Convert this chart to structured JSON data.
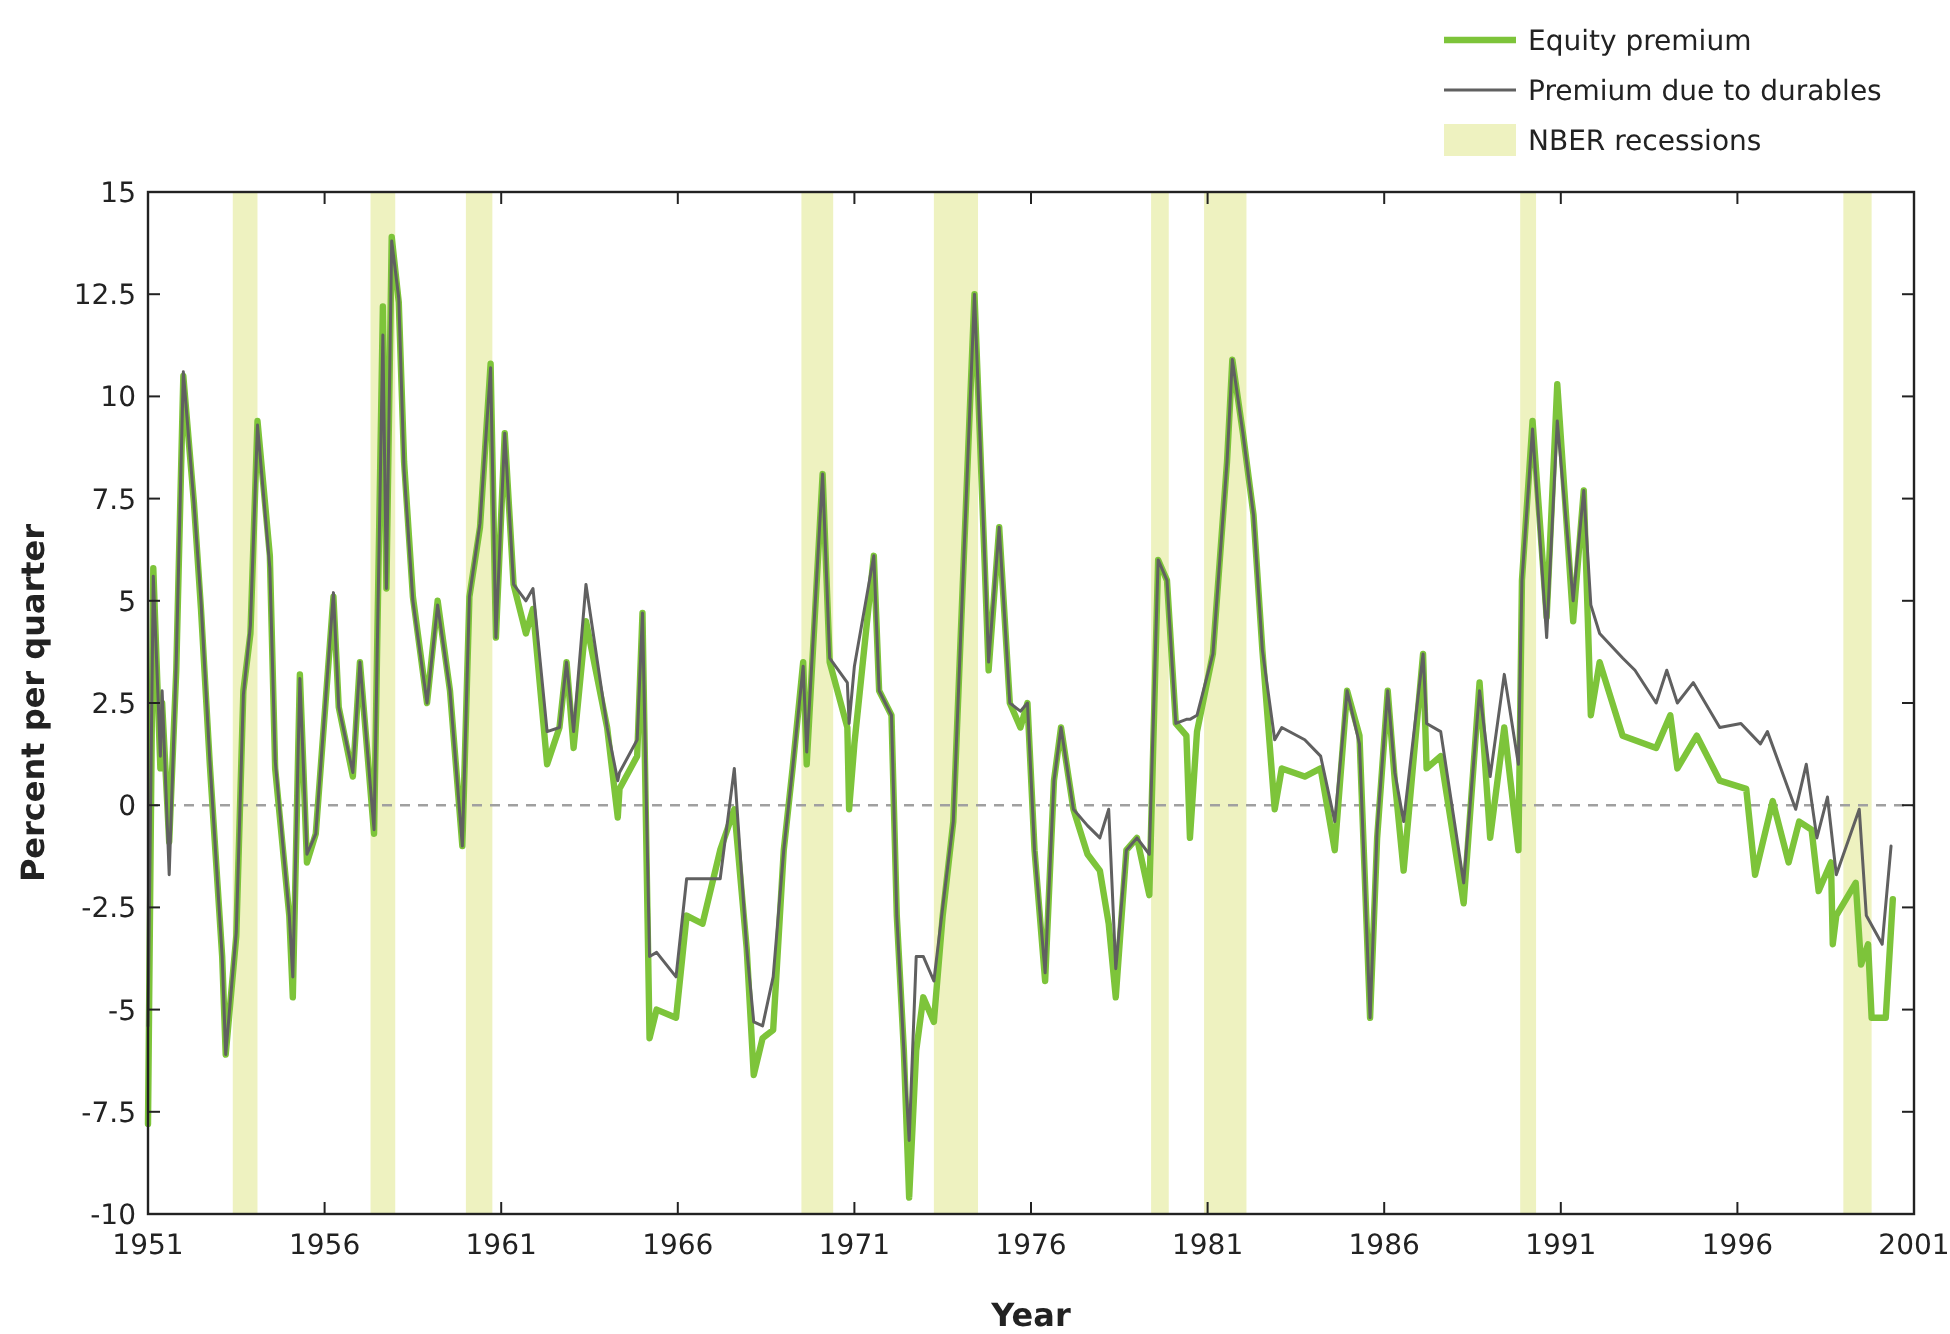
{
  "chart_data": {
    "type": "line",
    "xlabel": "Year",
    "ylabel": "Percent per quarter",
    "xlim": [
      1951,
      2001
    ],
    "xticks": [
      1951,
      1956,
      1961,
      1966,
      1971,
      1976,
      1981,
      1986,
      1991,
      1996,
      2001
    ],
    "ylim": [
      -10,
      15
    ],
    "yticks": [
      -10,
      -7.5,
      -5,
      -2.5,
      0,
      2.5,
      5,
      7.5,
      10,
      12.5,
      15
    ],
    "grid": false,
    "legend": "top right",
    "marker": "none",
    "line_style": "solid",
    "series": [
      {
        "name": "Equity premium",
        "color": "#7dc43a",
        "x": [
          1951.0,
          1951.15,
          1951.35,
          1951.4,
          1951.6,
          1951.8,
          1952.0,
          1952.3,
          1952.5,
          1952.75,
          1953.1,
          1953.2,
          1953.5,
          1953.7,
          1953.9,
          1954.1,
          1954.45,
          1954.6,
          1955.0,
          1955.1,
          1955.3,
          1955.5,
          1955.75,
          1956.25,
          1956.4,
          1956.8,
          1957.0,
          1957.4,
          1957.65,
          1957.75,
          1957.9,
          1958.1,
          1958.25,
          1958.5,
          1958.9,
          1959.2,
          1959.55,
          1959.9,
          1960.1,
          1960.4,
          1960.7,
          1960.85,
          1961.1,
          1961.35,
          1961.7,
          1961.9,
          1962.3,
          1962.65,
          1962.85,
          1963.05,
          1963.4,
          1964.0,
          1964.3,
          1964.35,
          1964.85,
          1965.0,
          1965.2,
          1965.4,
          1965.95,
          1966.25,
          1966.7,
          1967.2,
          1967.6,
          1967.95,
          1968.15,
          1968.4,
          1968.7,
          1969.0,
          1969.25,
          1969.55,
          1969.65,
          1970.1,
          1970.3,
          1970.8,
          1970.85,
          1971.0,
          1971.55,
          1971.7,
          1972.05,
          1972.2,
          1972.4,
          1972.55,
          1972.75,
          1972.95,
          1973.25,
          1973.5,
          1973.8,
          1974.1,
          1974.4,
          1974.65,
          1974.8,
          1975.1,
          1975.4,
          1975.7,
          1975.9,
          1976.1,
          1976.4,
          1976.65,
          1976.85,
          1977.2,
          1977.6,
          1977.95,
          1978.2,
          1978.4,
          1978.7,
          1979.0,
          1979.35,
          1979.6,
          1979.85,
          1980.1,
          1980.4,
          1980.5,
          1980.7,
          1981.15,
          1981.55,
          1981.7,
          1982.0,
          1982.3,
          1982.55,
          1982.9,
          1983.1,
          1983.75,
          1984.2,
          1984.6,
          1984.95,
          1985.3,
          1985.6,
          1985.8,
          1986.1,
          1986.3,
          1986.55,
          1987.1,
          1987.2,
          1987.6,
          1988.25,
          1988.7,
          1989.0,
          1989.4,
          1989.8,
          1989.9,
          1990.2,
          1990.6,
          1990.9,
          1991.35,
          1991.65,
          1991.85,
          1992.1,
          1992.75,
          1993.7,
          1994.1,
          1994.3,
          1994.85,
          1995.5,
          1996.25,
          1996.5,
          1997.0,
          1997.45,
          1997.75,
          1998.1,
          1998.3,
          1998.65,
          1998.7,
          1998.8,
          1999.35,
          1999.5,
          1999.7,
          1999.8,
          2000.2,
          2000.4
        ],
        "values": [
          -7.8,
          5.8,
          0.9,
          2.5,
          -0.9,
          3.3,
          10.5,
          7.4,
          4.8,
          1.0,
          -3.7,
          -6.1,
          -3.2,
          2.8,
          4.2,
          9.4,
          6.1,
          0.9,
          -2.7,
          -4.7,
          3.2,
          -1.4,
          -0.7,
          5.1,
          2.4,
          0.7,
          3.5,
          -0.7,
          12.2,
          5.3,
          13.9,
          12.3,
          8.4,
          5.1,
          2.5,
          5.0,
          2.8,
          -1.0,
          5.1,
          6.8,
          10.8,
          4.1,
          9.1,
          5.4,
          4.2,
          4.8,
          1.0,
          1.9,
          3.5,
          1.4,
          4.5,
          1.9,
          -0.3,
          0.4,
          1.2,
          4.7,
          -5.7,
          -5.0,
          -5.2,
          -2.7,
          -2.9,
          -1.1,
          -0.1,
          -3.5,
          -6.6,
          -5.7,
          -5.5,
          -1.1,
          0.9,
          3.5,
          1.0,
          8.1,
          3.5,
          1.9,
          -0.1,
          1.5,
          6.1,
          2.8,
          2.2,
          -2.7,
          -6.0,
          -9.6,
          -6.0,
          -4.7,
          -5.3,
          -2.7,
          -0.4,
          6.1,
          12.5,
          6.8,
          3.3,
          6.8,
          2.5,
          1.9,
          2.5,
          -1.1,
          -4.3,
          0.6,
          1.9,
          -0.1,
          -1.2,
          -1.6,
          -2.9,
          -4.7,
          -1.1,
          -0.8,
          -2.2,
          6.0,
          5.5,
          2.0,
          1.7,
          -0.8,
          1.8,
          3.7,
          8.4,
          10.9,
          9.1,
          7.1,
          3.8,
          -0.1,
          0.9,
          0.7,
          0.9,
          -1.1,
          2.8,
          1.7,
          -5.2,
          -0.8,
          2.8,
          0.6,
          -1.6,
          3.7,
          0.9,
          1.2,
          -2.4,
          3.0,
          -0.8,
          1.9,
          -1.1,
          5.5,
          9.4,
          4.6,
          10.3,
          4.5,
          7.7,
          2.2,
          3.5,
          1.7,
          1.4,
          2.2,
          0.9,
          1.7,
          0.6,
          0.4,
          -1.7,
          0.1,
          -1.4,
          -0.4,
          -0.6,
          -2.1,
          -1.4,
          -3.4,
          -2.7,
          -1.9,
          -3.9,
          -3.4,
          -5.2,
          -5.2,
          -2.3
        ]
      },
      {
        "name": "Premium due to durables",
        "color": "#606060",
        "x": [
          1951.0,
          1951.15,
          1951.35,
          1951.4,
          1951.6,
          1951.8,
          1952.0,
          1952.3,
          1952.5,
          1952.75,
          1953.1,
          1953.2,
          1953.5,
          1953.7,
          1953.9,
          1954.1,
          1954.45,
          1954.6,
          1955.0,
          1955.1,
          1955.3,
          1955.5,
          1955.75,
          1956.25,
          1956.4,
          1956.8,
          1957.0,
          1957.4,
          1957.65,
          1957.75,
          1957.9,
          1958.1,
          1958.25,
          1958.5,
          1958.9,
          1959.2,
          1959.55,
          1959.9,
          1960.1,
          1960.4,
          1960.7,
          1960.85,
          1961.1,
          1961.35,
          1961.7,
          1961.9,
          1962.3,
          1962.65,
          1962.85,
          1963.05,
          1963.4,
          1964.0,
          1964.3,
          1964.35,
          1964.85,
          1965.0,
          1965.2,
          1965.4,
          1965.95,
          1966.25,
          1966.7,
          1967.2,
          1967.6,
          1967.95,
          1968.15,
          1968.4,
          1968.7,
          1969.0,
          1969.25,
          1969.55,
          1969.65,
          1970.1,
          1970.3,
          1970.8,
          1970.85,
          1971.0,
          1971.55,
          1971.7,
          1972.05,
          1972.2,
          1972.4,
          1972.55,
          1972.75,
          1972.95,
          1973.25,
          1973.5,
          1973.8,
          1974.1,
          1974.4,
          1974.65,
          1974.8,
          1975.1,
          1975.4,
          1975.7,
          1975.9,
          1976.1,
          1976.4,
          1976.65,
          1976.85,
          1977.2,
          1977.6,
          1977.95,
          1978.2,
          1978.4,
          1978.7,
          1979.0,
          1979.35,
          1979.6,
          1979.85,
          1980.1,
          1980.4,
          1980.5,
          1980.7,
          1981.15,
          1981.55,
          1981.7,
          1982.0,
          1982.3,
          1982.55,
          1982.9,
          1983.1,
          1983.75,
          1984.2,
          1984.6,
          1984.95,
          1985.3,
          1985.6,
          1985.8,
          1986.1,
          1986.3,
          1986.55,
          1987.1,
          1987.2,
          1987.6,
          1988.25,
          1988.7,
          1989.0,
          1989.4,
          1989.8,
          1989.9,
          1990.2,
          1990.6,
          1990.9,
          1991.35,
          1991.65,
          1991.85,
          1992.1,
          1992.75,
          1993.1,
          1993.7,
          1994.0,
          1994.3,
          1994.75,
          1995.5,
          1996.1,
          1996.65,
          1996.85,
          1997.65,
          1997.95,
          1998.25,
          1998.55,
          1998.8,
          1999.45,
          1999.65,
          2000.1,
          2000.35
        ],
        "values": [
          -5.4,
          5.6,
          1.2,
          2.8,
          -1.7,
          3.5,
          10.6,
          7.4,
          5.0,
          1.1,
          -3.7,
          -6.1,
          -3.1,
          2.7,
          4.4,
          9.3,
          5.8,
          1.1,
          -2.7,
          -4.2,
          3.1,
          -1.2,
          -0.7,
          5.2,
          2.4,
          0.8,
          3.5,
          -0.6,
          11.5,
          5.3,
          13.8,
          12.4,
          8.2,
          5.0,
          2.5,
          4.9,
          2.8,
          -1.0,
          5.1,
          6.9,
          10.7,
          4.1,
          9.1,
          5.4,
          5.0,
          5.3,
          1.8,
          1.9,
          3.5,
          1.8,
          5.4,
          1.9,
          0.6,
          0.8,
          1.6,
          4.7,
          -3.7,
          -3.6,
          -4.2,
          -1.8,
          -1.8,
          -1.8,
          0.9,
          -3.5,
          -5.3,
          -5.4,
          -4.2,
          -1.1,
          0.9,
          3.4,
          1.3,
          8.1,
          3.6,
          3.0,
          2.0,
          3.4,
          6.1,
          2.8,
          2.2,
          -2.7,
          -6.0,
          -8.2,
          -3.7,
          -3.7,
          -4.3,
          -2.5,
          -0.4,
          6.1,
          12.5,
          6.9,
          3.5,
          6.8,
          2.5,
          2.3,
          2.5,
          -1.1,
          -4.1,
          0.6,
          1.9,
          -0.1,
          -0.5,
          -0.8,
          -0.1,
          -4.0,
          -1.1,
          -0.8,
          -1.2,
          6.0,
          5.5,
          2.0,
          2.1,
          2.1,
          2.2,
          3.7,
          8.4,
          10.9,
          9.1,
          7.1,
          3.8,
          1.6,
          1.9,
          1.6,
          1.2,
          -0.4,
          2.8,
          1.5,
          -5.2,
          -0.6,
          2.8,
          0.8,
          -0.4,
          3.7,
          2.0,
          1.8,
          -1.9,
          2.8,
          0.7,
          3.2,
          1.0,
          5.5,
          9.2,
          4.1,
          9.4,
          5.0,
          7.7,
          4.9,
          4.2,
          3.6,
          3.3,
          2.5,
          3.3,
          2.5,
          3.0,
          1.9,
          2.0,
          1.5,
          1.8,
          -0.1,
          1.0,
          -0.8,
          0.2,
          -1.7,
          -0.1,
          -2.7,
          -3.4,
          -1.0
        ]
      }
    ],
    "ref_lines": [
      {
        "axis": "y",
        "value": 0,
        "color": "#a0a0a0",
        "line_style": "dashed"
      }
    ],
    "bands": [
      {
        "axis": "x",
        "from": 1953.4,
        "to": 1954.1,
        "label": "NBER recessions",
        "color": "#eef2c0"
      },
      {
        "axis": "x",
        "from": 1957.3,
        "to": 1958.0,
        "color": "#eef2c0"
      },
      {
        "axis": "x",
        "from": 1960.0,
        "to": 1960.75,
        "color": "#eef2c0"
      },
      {
        "axis": "x",
        "from": 1969.5,
        "to": 1970.4,
        "color": "#eef2c0"
      },
      {
        "axis": "x",
        "from": 1973.25,
        "to": 1974.5,
        "color": "#eef2c0"
      },
      {
        "axis": "x",
        "from": 1979.4,
        "to": 1979.9,
        "color": "#eef2c0"
      },
      {
        "axis": "x",
        "from": 1980.9,
        "to": 1982.1,
        "color": "#eef2c0"
      },
      {
        "axis": "x",
        "from": 1989.85,
        "to": 1990.3,
        "color": "#eef2c0"
      },
      {
        "axis": "x",
        "from": 1999.0,
        "to": 1999.8,
        "color": "#eef2c0"
      }
    ]
  }
}
